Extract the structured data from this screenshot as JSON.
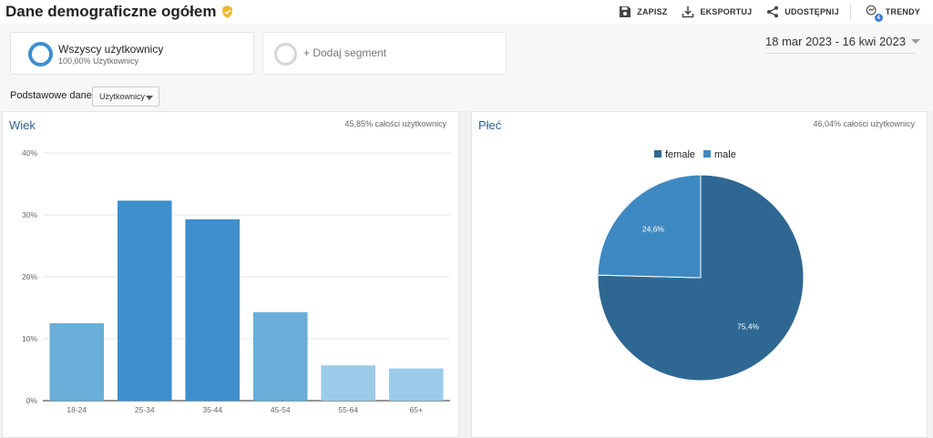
{
  "header": {
    "title": "Dane demograficzne ogółem",
    "actions": {
      "save": "ZAPISZ",
      "export": "EKSPORTUJ",
      "share": "UDOSTĘPNIJ",
      "trends": "TRENDY",
      "trends_badge": "4"
    }
  },
  "segments": {
    "active": {
      "name": "Wszyscy użytkownicy",
      "sub": "100,00% Użytkownicy"
    },
    "add_label": "+ Dodaj segment"
  },
  "date_range": "18 mar 2023 - 16 kwi 2023",
  "primary": {
    "label": "Podstawowe dane:",
    "value": "Użytkownicy"
  },
  "age_panel": {
    "title": "Wiek",
    "note": "45,85% całości użytkownicy"
  },
  "gender_panel": {
    "title": "Płeć",
    "note": "46,04% całości użytkownicy"
  },
  "colors": {
    "accent": "#3d8fd0",
    "title_blue": "#2f5f92",
    "bar_dark": "#3d8ecb",
    "bar_mid": "#6aaed9",
    "bar_light": "#9ccbea",
    "female": "#2e6892",
    "male": "#3f89c2"
  },
  "chart_data": [
    {
      "type": "bar",
      "categories": [
        "18-24",
        "25-34",
        "35-44",
        "45-54",
        "55-64",
        "65+"
      ],
      "values": [
        12.5,
        32.3,
        29.3,
        14.3,
        5.7,
        5.2
      ],
      "ylim": [
        0,
        40
      ],
      "yticks": [
        "0%",
        "10%",
        "20%",
        "30%",
        "40%"
      ],
      "grid": true
    },
    {
      "type": "pie",
      "labels": [
        "female",
        "male"
      ],
      "values": [
        75.4,
        24.6
      ],
      "value_labels": [
        "75,4%",
        "24,6%"
      ],
      "legend": "top"
    }
  ]
}
